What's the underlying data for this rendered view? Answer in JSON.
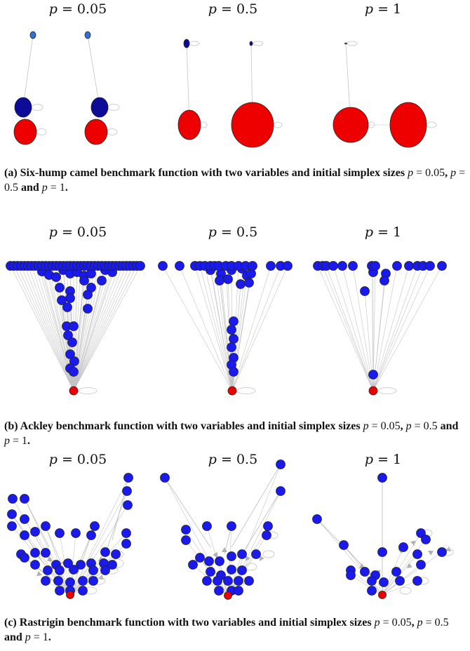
{
  "panels": [
    {
      "id": "a",
      "subplot_labels": [
        {
          "var": "p",
          "eq": " = ",
          "val": "0.05"
        },
        {
          "var": "p",
          "eq": " = ",
          "val": "0.5"
        },
        {
          "var": "p",
          "eq": " = ",
          "val": "1"
        }
      ],
      "caption": {
        "prefix": "(a) Six-hump camel benchmark function with two variables and initial simplex sizes ",
        "v1": "p",
        "t1": " = ",
        "n1": "0.05",
        "s1": ", ",
        "v2": "p",
        "t2": " = ",
        "n2": "0.5",
        "s2": " and ",
        "v3": "p",
        "t3": " = ",
        "n3": "1",
        "end": "."
      }
    },
    {
      "id": "b",
      "subplot_labels": [
        {
          "var": "p",
          "eq": " = ",
          "val": "0.05"
        },
        {
          "var": "p",
          "eq": " = ",
          "val": "0.5"
        },
        {
          "var": "p",
          "eq": " = ",
          "val": "1"
        }
      ],
      "caption": {
        "prefix": "(b) Ackley benchmark function with two variables and initial simplex sizes ",
        "v1": "p",
        "t1": " = ",
        "n1": "0.05",
        "s1": ", ",
        "v2": "p",
        "t2": " = ",
        "n2": "0.5",
        "s2": " and ",
        "v3": "p",
        "t3": " = ",
        "n3": "1",
        "end": "."
      }
    },
    {
      "id": "c",
      "subplot_labels": [
        {
          "var": "p",
          "eq": " = ",
          "val": "0.05"
        },
        {
          "var": "p",
          "eq": " = ",
          "val": "0.5"
        },
        {
          "var": "p",
          "eq": " = ",
          "val": "1"
        }
      ],
      "caption": {
        "prefix": "(c) Rastrigin benchmark function with two variables and initial simplex sizes ",
        "v1": "p",
        "t1": " = ",
        "n1": "0.05",
        "s1": ", ",
        "v2": "p",
        "t2": " = ",
        "n2": "0.5",
        "s2": " and ",
        "v3": "p",
        "t3": " = ",
        "n3": "1",
        "end": "."
      }
    }
  ],
  "colors": {
    "optimum": "#ee0000",
    "node_blue": "#1a1aee",
    "node_dark_blue": "#0c0c99",
    "node_light_blue": "#2e72d8",
    "edge": "#c4c4c4",
    "node_stroke": "#222222"
  }
}
